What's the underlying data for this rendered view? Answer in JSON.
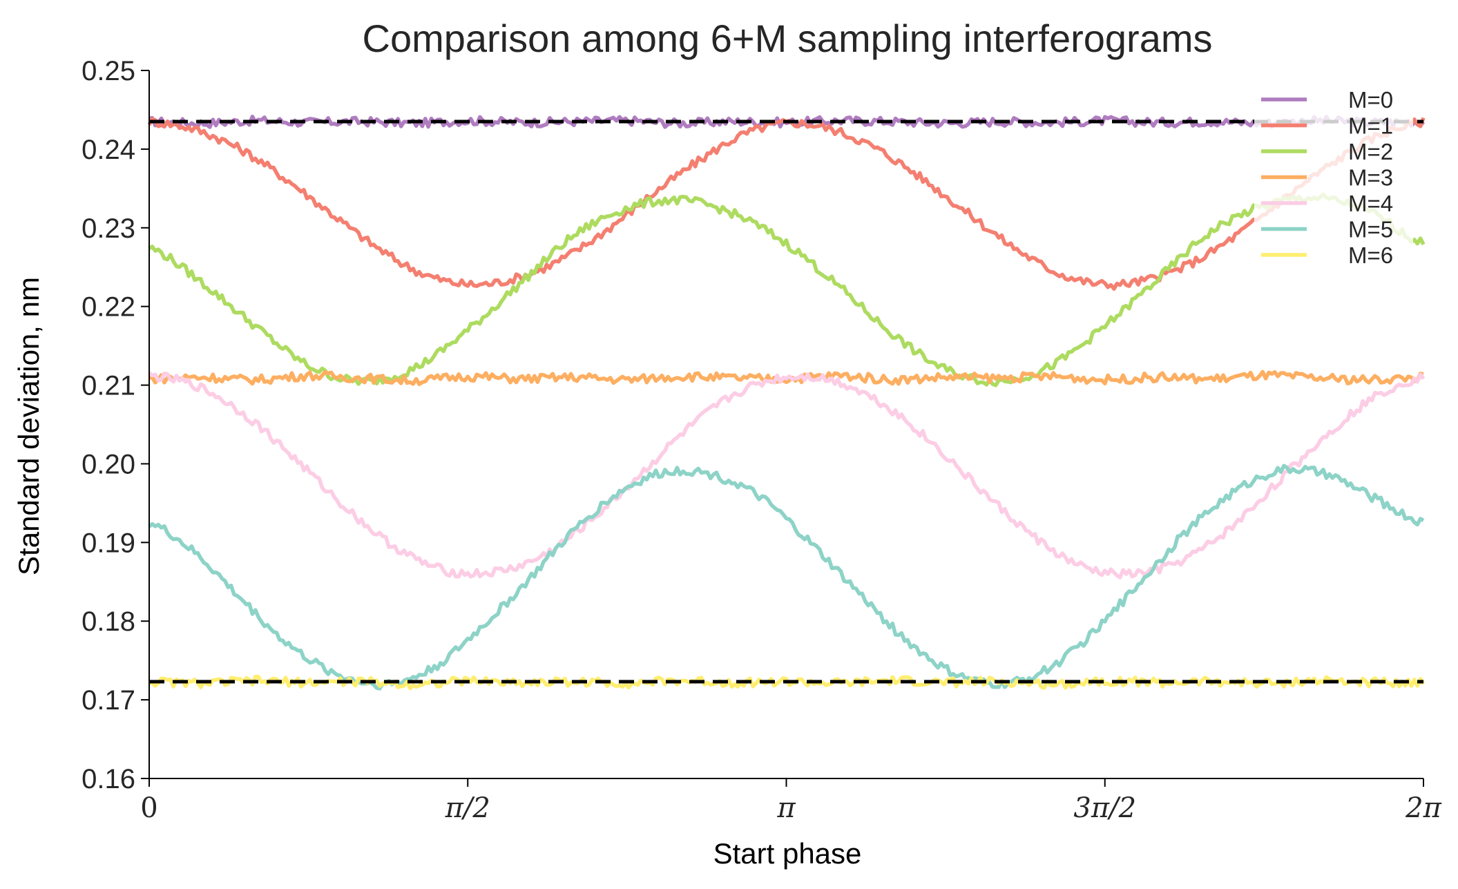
{
  "chart_data": {
    "type": "line",
    "title": "Comparison among 6+M sampling interferograms",
    "xlabel": "Start phase",
    "ylabel": "Standard deviation, nm",
    "xlim": [
      0,
      6.283185
    ],
    "ylim": [
      0.16,
      0.25
    ],
    "x_ticks": [
      {
        "value": 0,
        "label": "0"
      },
      {
        "value": 1.570796,
        "label": "π/2"
      },
      {
        "value": 3.141593,
        "label": "π"
      },
      {
        "value": 4.712389,
        "label": "3π/2"
      },
      {
        "value": 6.283185,
        "label": "2π"
      }
    ],
    "y_ticks": [
      {
        "value": 0.16,
        "label": "0.16"
      },
      {
        "value": 0.17,
        "label": "0.17"
      },
      {
        "value": 0.18,
        "label": "0.18"
      },
      {
        "value": 0.19,
        "label": "0.19"
      },
      {
        "value": 0.2,
        "label": "0.20"
      },
      {
        "value": 0.21,
        "label": "0.21"
      },
      {
        "value": 0.22,
        "label": "0.22"
      },
      {
        "value": 0.23,
        "label": "0.23"
      },
      {
        "value": 0.24,
        "label": "0.24"
      },
      {
        "value": 0.25,
        "label": "0.25"
      }
    ],
    "grid": false,
    "legend_position": "top-right",
    "series": [
      {
        "name": "M=0",
        "color": "#b07cc0",
        "values": [
          0.2435,
          0.2433,
          0.2436,
          0.2434,
          0.2435,
          0.2433,
          0.2436,
          0.2434,
          0.2435,
          0.2436,
          0.2433,
          0.2435,
          0.2434,
          0.2436,
          0.2435,
          0.2433,
          0.2435,
          0.2434,
          0.2436,
          0.2434,
          0.2435,
          0.2433,
          0.2436,
          0.2434,
          0.2435
        ]
      },
      {
        "name": "M=1",
        "color": "#f47f70",
        "values": [
          0.2435,
          0.2425,
          0.24,
          0.2362,
          0.2318,
          0.2275,
          0.2242,
          0.2228,
          0.2235,
          0.2258,
          0.2295,
          0.234,
          0.2382,
          0.2417,
          0.2433,
          0.2425,
          0.24,
          0.2362,
          0.2318,
          0.2275,
          0.2242,
          0.2228,
          0.2235,
          0.2258,
          0.2295,
          0.234,
          0.2382,
          0.2417,
          0.2435
        ]
      },
      {
        "name": "M=2",
        "color": "#addb60",
        "values": [
          0.2275,
          0.223,
          0.2175,
          0.2125,
          0.2105,
          0.2122,
          0.217,
          0.223,
          0.229,
          0.2325,
          0.2335,
          0.2318,
          0.228,
          0.2225,
          0.2165,
          0.212,
          0.2105,
          0.2125,
          0.2175,
          0.2235,
          0.2295,
          0.2328,
          0.2338,
          0.232,
          0.228
        ]
      },
      {
        "name": "M=3",
        "color": "#fdae61",
        "values": [
          0.2108,
          0.211,
          0.2107,
          0.2112,
          0.2109,
          0.2106,
          0.2111,
          0.2108,
          0.211,
          0.2107,
          0.2111,
          0.2109,
          0.2108,
          0.2112,
          0.2107,
          0.211,
          0.2109,
          0.2111,
          0.2107,
          0.211,
          0.2108,
          0.2112,
          0.2109,
          0.2107,
          0.211
        ]
      },
      {
        "name": "M=4",
        "color": "#fccde5",
        "values": [
          0.2112,
          0.2098,
          0.206,
          0.2005,
          0.1945,
          0.1895,
          0.1865,
          0.1862,
          0.1882,
          0.1928,
          0.1985,
          0.2045,
          0.209,
          0.211,
          0.2105,
          0.2075,
          0.2025,
          0.1965,
          0.191,
          0.187,
          0.186,
          0.1875,
          0.1915,
          0.1975,
          0.2035,
          0.2085,
          0.211
        ]
      },
      {
        "name": "M=5",
        "color": "#8dd3c7",
        "values": [
          0.1925,
          0.1885,
          0.1825,
          0.1768,
          0.1732,
          0.172,
          0.174,
          0.179,
          0.185,
          0.1915,
          0.1965,
          0.199,
          0.1985,
          0.1955,
          0.19,
          0.1838,
          0.1778,
          0.1735,
          0.172,
          0.1738,
          0.1785,
          0.185,
          0.1915,
          0.1965,
          0.1992,
          0.1985,
          0.1955,
          0.1925
        ]
      },
      {
        "name": "M=6",
        "color": "#ffed6f",
        "values": [
          0.1723,
          0.1721,
          0.1724,
          0.1722,
          0.1723,
          0.172,
          0.1724,
          0.1722,
          0.1723,
          0.1721,
          0.1724,
          0.1722,
          0.1723,
          0.1721,
          0.1724,
          0.1722,
          0.1723,
          0.172,
          0.1724,
          0.1722,
          0.1723,
          0.1721,
          0.1724,
          0.1722,
          0.1723
        ]
      }
    ],
    "reference_lines": [
      {
        "y": 0.2435,
        "color": "#000000",
        "style": "dashed"
      },
      {
        "y": 0.1723,
        "color": "#000000",
        "style": "dashed"
      }
    ]
  }
}
